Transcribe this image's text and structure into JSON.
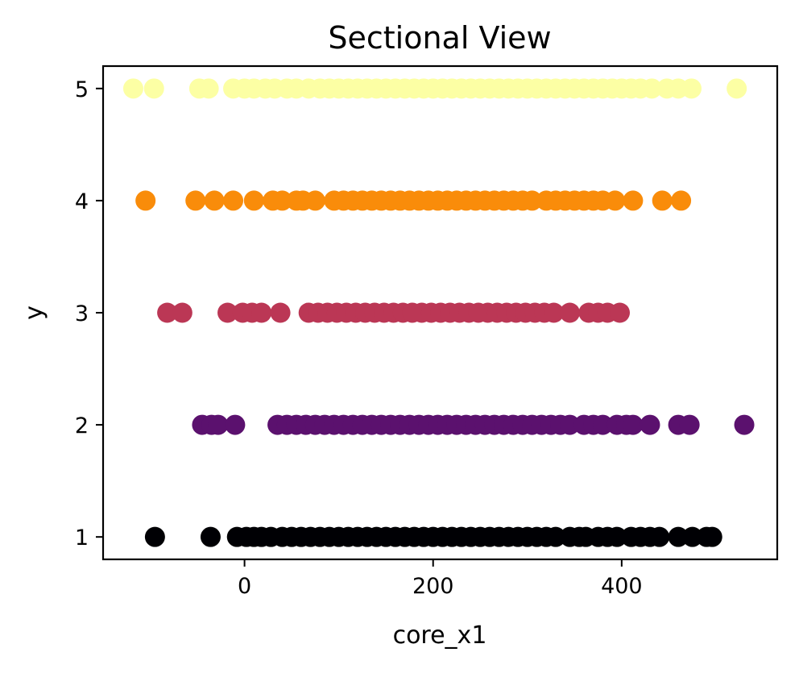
{
  "chart_data": {
    "type": "scatter",
    "title": "Sectional View",
    "xlabel": "core_x1",
    "ylabel": "y",
    "xlim": [
      -150,
      565
    ],
    "ylim": [
      0.8,
      5.2
    ],
    "xticks": [
      0,
      200,
      400
    ],
    "yticks": [
      1,
      2,
      3,
      4,
      5
    ],
    "colormap": "inferno",
    "grid": false,
    "series": [
      {
        "y": 1,
        "color": "#000004",
        "x": [
          -95,
          -36,
          -8,
          2,
          10,
          18,
          28,
          40,
          50,
          60,
          70,
          80,
          90,
          100,
          110,
          120,
          130,
          140,
          150,
          160,
          170,
          180,
          190,
          200,
          210,
          220,
          230,
          240,
          250,
          260,
          270,
          280,
          290,
          300,
          310,
          320,
          330,
          345,
          355,
          362,
          375,
          385,
          395,
          410,
          420,
          430,
          440,
          460,
          475,
          490,
          496
        ]
      },
      {
        "y": 2,
        "color": "#5b116e",
        "x": [
          -45,
          -35,
          -28,
          -10,
          35,
          45,
          55,
          65,
          75,
          85,
          95,
          105,
          115,
          125,
          135,
          145,
          155,
          165,
          175,
          185,
          195,
          205,
          215,
          225,
          235,
          245,
          255,
          265,
          275,
          285,
          295,
          305,
          315,
          325,
          335,
          345,
          360,
          370,
          380,
          395,
          405,
          412,
          430,
          460,
          472,
          530
        ]
      },
      {
        "y": 3,
        "color": "#bb3755",
        "x": [
          -82,
          -66,
          -18,
          -2,
          8,
          18,
          38,
          68,
          78,
          88,
          98,
          108,
          118,
          128,
          138,
          148,
          158,
          168,
          178,
          188,
          198,
          208,
          218,
          228,
          238,
          248,
          258,
          268,
          278,
          288,
          298,
          308,
          318,
          328,
          345,
          365,
          375,
          385,
          398
        ]
      },
      {
        "y": 4,
        "color": "#f98c0a",
        "x": [
          -105,
          -52,
          -32,
          -12,
          10,
          30,
          40,
          55,
          62,
          75,
          95,
          105,
          115,
          125,
          135,
          145,
          155,
          165,
          175,
          185,
          195,
          205,
          215,
          225,
          235,
          245,
          255,
          265,
          275,
          285,
          295,
          305,
          320,
          330,
          340,
          350,
          360,
          370,
          380,
          393,
          412,
          443,
          463
        ]
      },
      {
        "y": 5,
        "color": "#fcffa4",
        "x": [
          -118,
          -96,
          -48,
          -38,
          -12,
          0,
          10,
          22,
          32,
          45,
          55,
          68,
          80,
          90,
          100,
          110,
          120,
          130,
          140,
          150,
          160,
          170,
          180,
          190,
          200,
          210,
          220,
          230,
          240,
          250,
          260,
          270,
          280,
          290,
          300,
          310,
          320,
          330,
          340,
          350,
          360,
          370,
          380,
          390,
          400,
          410,
          420,
          432,
          448,
          460,
          474,
          522
        ]
      }
    ]
  }
}
